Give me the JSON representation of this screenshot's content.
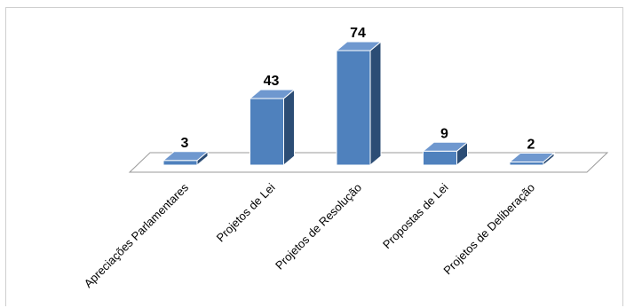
{
  "chart_data": {
    "type": "bar",
    "style": "3d-column",
    "categories": [
      "Apreciações Parlamentares",
      "Projetos de Lei",
      "Projetos de Resolução",
      "Propostas de Lei",
      "Projetos de Deliberação"
    ],
    "values": [
      3,
      43,
      74,
      9,
      2
    ],
    "data_labels": [
      "3",
      "43",
      "74",
      "9",
      "2"
    ],
    "title": "",
    "xlabel": "",
    "ylabel": "",
    "ylim": [
      0,
      74
    ],
    "grid": false,
    "legend": "none",
    "colors": {
      "front": "#4f81bd",
      "side": "#2c4d75",
      "top": "#6f98cf",
      "edge": "#ffffff",
      "floor_stroke": "#9a9a9a"
    }
  }
}
